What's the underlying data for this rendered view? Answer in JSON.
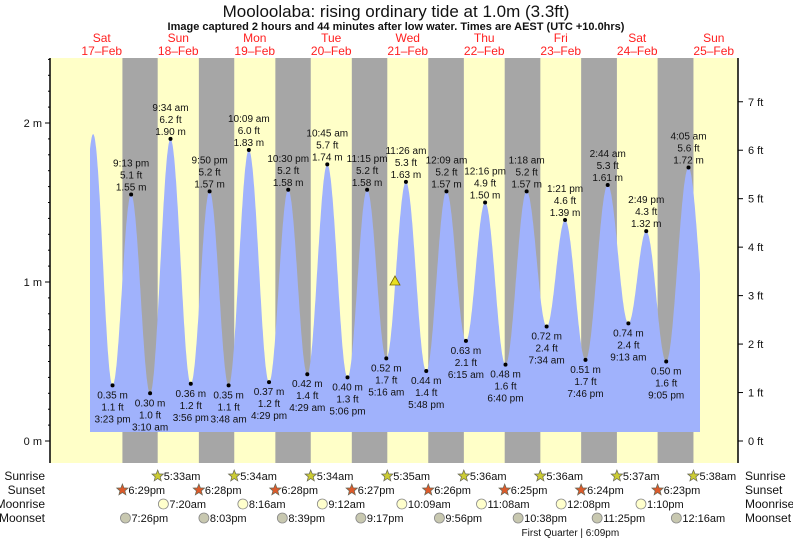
{
  "chart_data": {
    "type": "area",
    "title": "Mooloolaba: rising  ordinary tide at 1.0m (3.3ft)",
    "subtitle": "Image captured 2 hours and 44 minutes after low water. Times are AEST (UTC +10.0hrs)",
    "days": [
      {
        "dow": "Sat",
        "date": "17–Feb"
      },
      {
        "dow": "Sun",
        "date": "18–Feb"
      },
      {
        "dow": "Mon",
        "date": "19–Feb"
      },
      {
        "dow": "Tue",
        "date": "20–Feb"
      },
      {
        "dow": "Wed",
        "date": "21–Feb"
      },
      {
        "dow": "Thu",
        "date": "22–Feb"
      },
      {
        "dow": "Fri",
        "date": "23–Feb"
      },
      {
        "dow": "Sat",
        "date": "24–Feb"
      },
      {
        "dow": "Sun",
        "date": "25–Feb"
      }
    ],
    "y_left": {
      "unit": "m",
      "ticks": [
        "0 m",
        "1 m",
        "2 m"
      ],
      "range_m": [
        0,
        2.4
      ]
    },
    "y_right": {
      "unit": "ft",
      "ticks": [
        "0 ft",
        "1 ft",
        "2 ft",
        "3 ft",
        "4 ft",
        "5 ft",
        "6 ft",
        "7 ft"
      ]
    },
    "curve_start_peak": {
      "day": 0,
      "time": "9:18 am",
      "m": 1.93
    },
    "extremes": [
      {
        "day": 0,
        "time": "3:23 pm",
        "type": "low",
        "m": "0.35 m",
        "ft": "1.1 ft",
        "value": 0.35
      },
      {
        "day": 0,
        "time": "9:13 pm",
        "type": "high",
        "m": "1.55 m",
        "ft": "5.1 ft",
        "value": 1.55
      },
      {
        "day": 1,
        "time": "3:10 am",
        "type": "low",
        "m": "0.30 m",
        "ft": "1.0 ft",
        "value": 0.3
      },
      {
        "day": 1,
        "time": "9:34 am",
        "type": "high",
        "m": "1.90 m",
        "ft": "6.2 ft",
        "value": 1.9
      },
      {
        "day": 1,
        "time": "3:56 pm",
        "type": "low",
        "m": "0.36 m",
        "ft": "1.2 ft",
        "value": 0.36
      },
      {
        "day": 1,
        "time": "9:50 pm",
        "type": "high",
        "m": "1.57 m",
        "ft": "5.2 ft",
        "value": 1.57
      },
      {
        "day": 2,
        "time": "3:48 am",
        "type": "low",
        "m": "0.35 m",
        "ft": "1.1 ft",
        "value": 0.35
      },
      {
        "day": 2,
        "time": "10:09 am",
        "type": "high",
        "m": "1.83 m",
        "ft": "6.0 ft",
        "value": 1.83
      },
      {
        "day": 2,
        "time": "4:29 pm",
        "type": "low",
        "m": "0.37 m",
        "ft": "1.2 ft",
        "value": 0.37
      },
      {
        "day": 2,
        "time": "10:30 pm",
        "type": "high",
        "m": "1.58 m",
        "ft": "5.2 ft",
        "value": 1.58
      },
      {
        "day": 3,
        "time": "4:29 am",
        "type": "low",
        "m": "0.42 m",
        "ft": "1.4 ft",
        "value": 0.42
      },
      {
        "day": 3,
        "time": "10:45 am",
        "type": "high",
        "m": "1.74 m",
        "ft": "5.7 ft",
        "value": 1.74
      },
      {
        "day": 3,
        "time": "5:06 pm",
        "type": "low",
        "m": "0.40 m",
        "ft": "1.3 ft",
        "value": 0.4
      },
      {
        "day": 3,
        "time": "11:15 pm",
        "type": "high",
        "m": "1.58 m",
        "ft": "5.2 ft",
        "value": 1.58
      },
      {
        "day": 4,
        "time": "5:16 am",
        "type": "low",
        "m": "0.52 m",
        "ft": "1.7 ft",
        "value": 0.52
      },
      {
        "day": 4,
        "time": "11:26 am",
        "type": "high",
        "m": "1.63 m",
        "ft": "5.3 ft",
        "value": 1.63
      },
      {
        "day": 4,
        "time": "5:48 pm",
        "type": "low",
        "m": "0.44 m",
        "ft": "1.4 ft",
        "value": 0.44
      },
      {
        "day": 5,
        "time": "12:09 am",
        "type": "high",
        "m": "1.57 m",
        "ft": "5.2 ft",
        "value": 1.57
      },
      {
        "day": 5,
        "time": "6:15 am",
        "type": "low",
        "m": "0.63 m",
        "ft": "2.1 ft",
        "value": 0.63
      },
      {
        "day": 5,
        "time": "12:16 pm",
        "type": "high",
        "m": "1.50 m",
        "ft": "4.9 ft",
        "value": 1.5
      },
      {
        "day": 5,
        "time": "6:40 pm",
        "type": "low",
        "m": "0.48 m",
        "ft": "1.6 ft",
        "value": 0.48
      },
      {
        "day": 6,
        "time": "1:18 am",
        "type": "high",
        "m": "1.57 m",
        "ft": "5.2 ft",
        "value": 1.57
      },
      {
        "day": 6,
        "time": "7:34 am",
        "type": "low",
        "m": "0.72 m",
        "ft": "2.4 ft",
        "value": 0.72
      },
      {
        "day": 6,
        "time": "1:21 pm",
        "type": "high",
        "m": "1.39 m",
        "ft": "4.6 ft",
        "value": 1.39
      },
      {
        "day": 6,
        "time": "7:46 pm",
        "type": "low",
        "m": "0.51 m",
        "ft": "1.7 ft",
        "value": 0.51
      },
      {
        "day": 7,
        "time": "2:44 am",
        "type": "high",
        "m": "1.61 m",
        "ft": "5.3 ft",
        "value": 1.61
      },
      {
        "day": 7,
        "time": "9:13 am",
        "type": "low",
        "m": "0.74 m",
        "ft": "2.4 ft",
        "value": 0.74
      },
      {
        "day": 7,
        "time": "2:49 pm",
        "type": "high",
        "m": "1.32 m",
        "ft": "4.3 ft",
        "value": 1.32
      },
      {
        "day": 7,
        "time": "9:05 pm",
        "type": "low",
        "m": "0.50 m",
        "ft": "1.6 ft",
        "value": 0.5
      },
      {
        "day": 8,
        "time": "4:05 am",
        "type": "high",
        "m": "1.72 m",
        "ft": "5.6 ft",
        "value": 1.72
      }
    ],
    "current": {
      "day": 4,
      "time": "8:00 am",
      "m": 1.0,
      "state": "rising"
    },
    "colors": {
      "day": "#ffffc8",
      "night": "#a6a6a6",
      "water": "#a0b2fc",
      "day_label": "#ff2020",
      "sunrise": "#cccc33",
      "sunset": "#dd5a2a",
      "moonrise": "#ffffcc",
      "moonset": "#c8c8b0",
      "marker": "#e8e020"
    }
  },
  "events": {
    "labels": {
      "sunrise": "Sunrise",
      "sunset": "Sunset",
      "moonrise": "Moonrise",
      "moonset": "Moonset"
    },
    "sunrise": [
      {
        "day": 1,
        "time": "5:33am"
      },
      {
        "day": 2,
        "time": "5:34am"
      },
      {
        "day": 3,
        "time": "5:34am"
      },
      {
        "day": 4,
        "time": "5:35am"
      },
      {
        "day": 5,
        "time": "5:36am"
      },
      {
        "day": 6,
        "time": "5:36am"
      },
      {
        "day": 7,
        "time": "5:37am"
      },
      {
        "day": 8,
        "time": "5:38am"
      }
    ],
    "sunset": [
      {
        "day": 0,
        "time": "6:29pm"
      },
      {
        "day": 1,
        "time": "6:28pm"
      },
      {
        "day": 2,
        "time": "6:28pm"
      },
      {
        "day": 3,
        "time": "6:27pm"
      },
      {
        "day": 4,
        "time": "6:26pm"
      },
      {
        "day": 5,
        "time": "6:25pm"
      },
      {
        "day": 6,
        "time": "6:24pm"
      },
      {
        "day": 7,
        "time": "6:23pm"
      }
    ],
    "moonrise": [
      {
        "day": 1,
        "time": "7:20am"
      },
      {
        "day": 2,
        "time": "8:16am"
      },
      {
        "day": 3,
        "time": "9:12am"
      },
      {
        "day": 4,
        "time": "10:09am"
      },
      {
        "day": 5,
        "time": "11:08am"
      },
      {
        "day": 6,
        "time": "12:08pm"
      },
      {
        "day": 7,
        "time": "1:10pm"
      }
    ],
    "moonset": [
      {
        "day": 0,
        "time": "7:26pm"
      },
      {
        "day": 1,
        "time": "8:03pm"
      },
      {
        "day": 2,
        "time": "8:39pm"
      },
      {
        "day": 3,
        "time": "9:17pm"
      },
      {
        "day": 4,
        "time": "9:56pm"
      },
      {
        "day": 5,
        "time": "10:38pm"
      },
      {
        "day": 6,
        "time": "11:25pm"
      },
      {
        "day": 8,
        "time": "12:16am"
      }
    ],
    "moon_phase": {
      "day": 6,
      "time": "6:09pm",
      "label": "First Quarter | 6:09pm"
    }
  }
}
